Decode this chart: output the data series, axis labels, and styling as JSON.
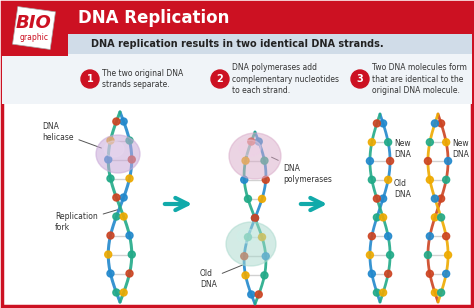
{
  "title": "DNA Replication",
  "subtitle": "DNA replication results in two identical DNA strands.",
  "title_bg": "#cc1122",
  "subtitle_bg": "#d0dce8",
  "main_bg": "#ffffff",
  "border_color": "#cc1122",
  "title_color": "#ffffff",
  "subtitle_color": "#222222",
  "step_circle_color": "#cc1122",
  "step_text_color": "#ffffff",
  "step_label_color": "#333333",
  "arrow_color": "#11aaaa",
  "logo_red": "#cc1122",
  "logo_white": "#ffffff",
  "steps": [
    {
      "number": "1",
      "text": "The two original DNA\nstrands separate."
    },
    {
      "number": "2",
      "text": "DNA polymerases add\ncomplementary nucleotides\nto each strand."
    },
    {
      "number": "3",
      "text": "Two DNA molecules form\nthat are identical to the\noriginal DNA molecule."
    }
  ],
  "dna_colors": [
    "#2288cc",
    "#22aa88",
    "#cc4422",
    "#eeaa00"
  ],
  "figsize": [
    4.74,
    3.08
  ],
  "dpi": 100
}
